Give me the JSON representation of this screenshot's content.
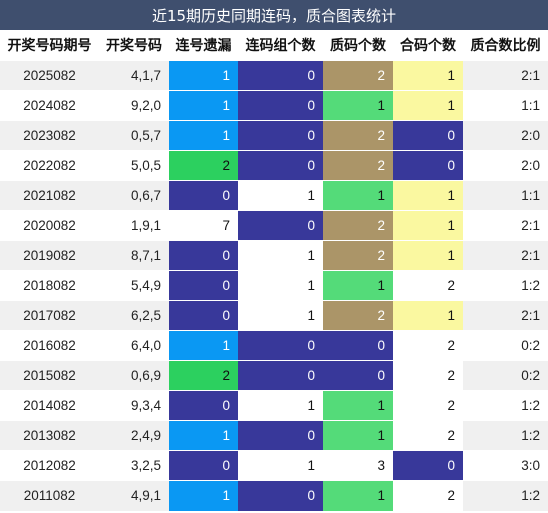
{
  "title": "近15期历史同期连码，质合图表统计",
  "headers": [
    "开奖号码期号",
    "开奖号码",
    "连号遗漏",
    "连码组个数",
    "质码个数",
    "合码个数",
    "质合数比例"
  ],
  "colors": {
    "light-blue": "#0a98f3",
    "green": "#2cd05f",
    "navy": "#38389a",
    "brown": "#ab9568",
    "light-green": "#54db79",
    "yellow": "#faf8a0",
    "white": "#ffffff",
    "title-bar": "#3f4f6e"
  },
  "rows": [
    {
      "period": "2025082",
      "numbers": "4,1,7",
      "lianhao_miss": "1",
      "lianma_groups": "0",
      "zhi_count": "2",
      "he_count": "1",
      "ratio": "2:1",
      "c_miss": "light-blue",
      "c_groups": "navy",
      "c_zhi": "brown",
      "c_he": "yellow"
    },
    {
      "period": "2024082",
      "numbers": "9,2,0",
      "lianhao_miss": "1",
      "lianma_groups": "0",
      "zhi_count": "1",
      "he_count": "1",
      "ratio": "1:1",
      "c_miss": "light-blue",
      "c_groups": "navy",
      "c_zhi": "light-green",
      "c_he": "yellow"
    },
    {
      "period": "2023082",
      "numbers": "0,5,7",
      "lianhao_miss": "1",
      "lianma_groups": "0",
      "zhi_count": "2",
      "he_count": "0",
      "ratio": "2:0",
      "c_miss": "light-blue",
      "c_groups": "navy",
      "c_zhi": "brown",
      "c_he": "navy"
    },
    {
      "period": "2022082",
      "numbers": "5,0,5",
      "lianhao_miss": "2",
      "lianma_groups": "0",
      "zhi_count": "2",
      "he_count": "0",
      "ratio": "2:0",
      "c_miss": "green",
      "c_groups": "navy",
      "c_zhi": "brown",
      "c_he": "navy"
    },
    {
      "period": "2021082",
      "numbers": "0,6,7",
      "lianhao_miss": "0",
      "lianma_groups": "1",
      "zhi_count": "1",
      "he_count": "1",
      "ratio": "1:1",
      "c_miss": "navy",
      "c_groups": "white",
      "c_zhi": "light-green",
      "c_he": "yellow"
    },
    {
      "period": "2020082",
      "numbers": "1,9,1",
      "lianhao_miss": "7",
      "lianma_groups": "0",
      "zhi_count": "2",
      "he_count": "1",
      "ratio": "2:1",
      "c_miss": "white",
      "c_groups": "navy",
      "c_zhi": "brown",
      "c_he": "yellow"
    },
    {
      "period": "2019082",
      "numbers": "8,7,1",
      "lianhao_miss": "0",
      "lianma_groups": "1",
      "zhi_count": "2",
      "he_count": "1",
      "ratio": "2:1",
      "c_miss": "navy",
      "c_groups": "white",
      "c_zhi": "brown",
      "c_he": "yellow"
    },
    {
      "period": "2018082",
      "numbers": "5,4,9",
      "lianhao_miss": "0",
      "lianma_groups": "1",
      "zhi_count": "1",
      "he_count": "2",
      "ratio": "1:2",
      "c_miss": "navy",
      "c_groups": "white",
      "c_zhi": "light-green",
      "c_he": "white"
    },
    {
      "period": "2017082",
      "numbers": "6,2,5",
      "lianhao_miss": "0",
      "lianma_groups": "1",
      "zhi_count": "2",
      "he_count": "1",
      "ratio": "2:1",
      "c_miss": "navy",
      "c_groups": "white",
      "c_zhi": "brown",
      "c_he": "yellow"
    },
    {
      "period": "2016082",
      "numbers": "6,4,0",
      "lianhao_miss": "1",
      "lianma_groups": "0",
      "zhi_count": "0",
      "he_count": "2",
      "ratio": "0:2",
      "c_miss": "light-blue",
      "c_groups": "navy",
      "c_zhi": "navy",
      "c_he": "white"
    },
    {
      "period": "2015082",
      "numbers": "0,6,9",
      "lianhao_miss": "2",
      "lianma_groups": "0",
      "zhi_count": "0",
      "he_count": "2",
      "ratio": "0:2",
      "c_miss": "green",
      "c_groups": "navy",
      "c_zhi": "navy",
      "c_he": "white"
    },
    {
      "period": "2014082",
      "numbers": "9,3,4",
      "lianhao_miss": "0",
      "lianma_groups": "1",
      "zhi_count": "1",
      "he_count": "2",
      "ratio": "1:2",
      "c_miss": "navy",
      "c_groups": "white",
      "c_zhi": "light-green",
      "c_he": "white"
    },
    {
      "period": "2013082",
      "numbers": "2,4,9",
      "lianhao_miss": "1",
      "lianma_groups": "0",
      "zhi_count": "1",
      "he_count": "2",
      "ratio": "1:2",
      "c_miss": "light-blue",
      "c_groups": "navy",
      "c_zhi": "light-green",
      "c_he": "white"
    },
    {
      "period": "2012082",
      "numbers": "3,2,5",
      "lianhao_miss": "0",
      "lianma_groups": "1",
      "zhi_count": "3",
      "he_count": "0",
      "ratio": "3:0",
      "c_miss": "navy",
      "c_groups": "white",
      "c_zhi": "white",
      "c_he": "navy"
    },
    {
      "period": "2011082",
      "numbers": "4,9,1",
      "lianhao_miss": "1",
      "lianma_groups": "0",
      "zhi_count": "1",
      "he_count": "2",
      "ratio": "1:2",
      "c_miss": "light-blue",
      "c_groups": "navy",
      "c_zhi": "light-green",
      "c_he": "white"
    }
  ]
}
